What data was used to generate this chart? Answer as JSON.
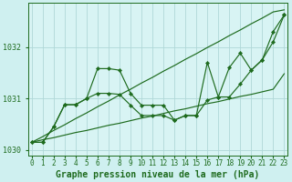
{
  "title": "Graphe pression niveau de la mer (hPa)",
  "background_color": "#cff0f0",
  "plot_bg_color": "#d8f4f4",
  "line_color": "#1e6b1e",
  "grid_color": "#b0d8d8",
  "x_values": [
    0,
    1,
    2,
    3,
    4,
    5,
    6,
    7,
    8,
    9,
    10,
    11,
    12,
    13,
    14,
    15,
    16,
    17,
    18,
    19,
    20,
    21,
    22,
    23
  ],
  "jagged_line": [
    1030.15,
    1030.15,
    1030.45,
    1030.88,
    1030.88,
    1031.0,
    1031.58,
    1031.58,
    1031.55,
    1031.1,
    1030.87,
    1030.87,
    1030.87,
    1030.58,
    1030.67,
    1030.67,
    1031.7,
    1031.03,
    1031.6,
    1031.88,
    1031.55,
    1031.75,
    1032.3,
    1032.62
  ],
  "smooth_line": [
    1030.15,
    1030.15,
    1030.45,
    1030.88,
    1030.88,
    1031.0,
    1031.1,
    1031.1,
    1031.08,
    1030.87,
    1030.67,
    1030.67,
    1030.67,
    1030.58,
    1030.67,
    1030.67,
    1030.97,
    1031.03,
    1031.03,
    1031.28,
    1031.55,
    1031.75,
    1032.1,
    1032.62
  ],
  "trend_upper": [
    1030.15,
    1030.26,
    1030.38,
    1030.49,
    1030.61,
    1030.72,
    1030.84,
    1030.95,
    1031.07,
    1031.18,
    1031.3,
    1031.41,
    1031.53,
    1031.64,
    1031.76,
    1031.87,
    1031.99,
    1032.1,
    1032.22,
    1032.33,
    1032.45,
    1032.56,
    1032.68,
    1032.72
  ],
  "trend_lower": [
    1030.15,
    1030.2,
    1030.24,
    1030.29,
    1030.34,
    1030.38,
    1030.43,
    1030.48,
    1030.52,
    1030.57,
    1030.62,
    1030.66,
    1030.71,
    1030.76,
    1030.8,
    1030.85,
    1030.9,
    1030.94,
    1030.99,
    1031.04,
    1031.08,
    1031.13,
    1031.18,
    1031.48
  ],
  "ylim": [
    1029.9,
    1032.85
  ],
  "yticks": [
    1030,
    1031,
    1032
  ],
  "xlim": [
    -0.3,
    23.3
  ],
  "xticks": [
    0,
    1,
    2,
    3,
    4,
    5,
    6,
    7,
    8,
    9,
    10,
    11,
    12,
    13,
    14,
    15,
    16,
    17,
    18,
    19,
    20,
    21,
    22,
    23
  ],
  "tick_fontsize": 6.0,
  "title_fontsize": 7.0
}
